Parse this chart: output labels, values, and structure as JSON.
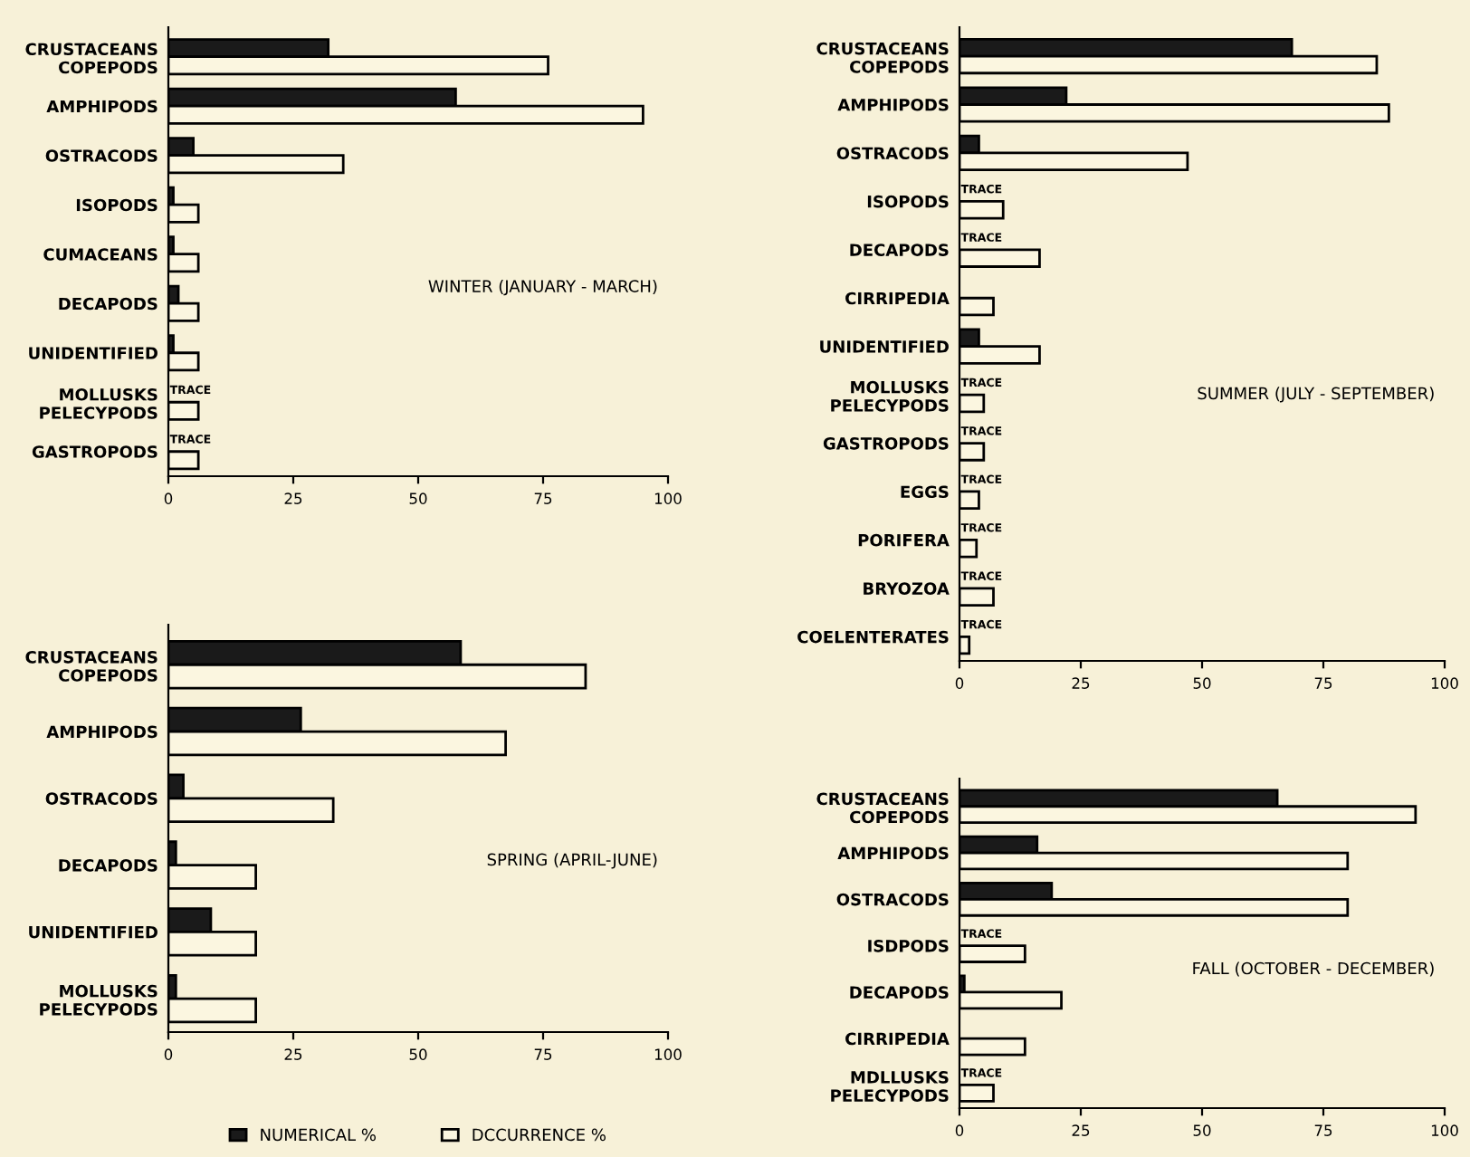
{
  "chart_data": [
    {
      "type": "bar",
      "orientation": "horizontal",
      "categories": [
        "CRUSTACEANS\nCOPEPODS",
        "AMPHIPODS",
        "OSTRACODS",
        "ISOPODS",
        "CUMACEANS",
        "DECAPODS",
        "UNIDENTIFIED",
        "MOLLUSKS\nPELECYPODS",
        "GASTROPODS"
      ],
      "series": [
        {
          "color": "#1a1a1a",
          "values": [
            32,
            57.5,
            5,
            1,
            1,
            2,
            1,
            null,
            null
          ],
          "value_labels": [
            null,
            null,
            null,
            null,
            null,
            null,
            null,
            "TRACE",
            "TRACE"
          ]
        },
        {
          "color": "#fbf6e0",
          "values": [
            76,
            95,
            35,
            6,
            6,
            6,
            6,
            6,
            6
          ]
        }
      ],
      "xlim": [
        0,
        100
      ],
      "xticks": [
        0,
        25,
        50,
        75,
        100
      ],
      "annotations": [
        "WINTER (JANUARY - MARCH)"
      ],
      "grid": false,
      "legend": false
    },
    {
      "type": "bar",
      "orientation": "horizontal",
      "categories": [
        "CRUSTACEANS\nCOPEPODS",
        "AMPHIPODS",
        "OSTRACODS",
        "ISOPODS",
        "DECAPODS",
        "CIRRIPEDIA",
        "UNIDENTIFIED",
        "MOLLUSKS\nPELECYPODS",
        "GASTROPODS",
        "EGGS",
        "PORIFERA",
        "BRYOZOA",
        "COELENTERATES"
      ],
      "series": [
        {
          "color": "#1a1a1a",
          "values": [
            68.5,
            22,
            4,
            null,
            null,
            null,
            4,
            null,
            null,
            null,
            null,
            null,
            null
          ],
          "value_labels": [
            null,
            null,
            null,
            "TRACE",
            "TRACE",
            null,
            null,
            "TRACE",
            "TRACE",
            "TRACE",
            "TRACE",
            "TRACE",
            "TRACE"
          ]
        },
        {
          "color": "#fbf6e0",
          "values": [
            86,
            88.5,
            47,
            9,
            16.5,
            7,
            16.5,
            5,
            5,
            4,
            3.5,
            7,
            2
          ]
        }
      ],
      "xlim": [
        0,
        100
      ],
      "xticks": [
        0,
        25,
        50,
        75,
        100
      ],
      "annotations": [
        "SUMMER (JULY - SEPTEMBER)"
      ],
      "grid": false,
      "legend": false
    },
    {
      "type": "bar",
      "orientation": "horizontal",
      "categories": [
        "CRUSTACEANS\nCOPEPODS",
        "AMPHIPODS",
        "OSTRACODS",
        "DECAPODS",
        "UNIDENTIFIED",
        "MOLLUSKS\nPELECYPODS"
      ],
      "series": [
        {
          "name": "NUMERICAL %",
          "color": "#1a1a1a",
          "values": [
            58.5,
            26.5,
            3,
            1.5,
            8.5,
            1.5
          ]
        },
        {
          "name": "DCCURRENCE %",
          "color": "#fbf6e0",
          "values": [
            83.5,
            67.5,
            33,
            17.5,
            17.5,
            17.5
          ]
        }
      ],
      "xlim": [
        0,
        100
      ],
      "xticks": [
        0,
        25,
        50,
        75,
        100
      ],
      "annotations": [
        "SPRING (APRIL-JUNE)"
      ],
      "grid": false,
      "legend": "bottom"
    },
    {
      "type": "bar",
      "orientation": "horizontal",
      "categories": [
        "CRUSTACEANS\nCOPEPODS",
        "AMPHIPODS",
        "OSTRACODS",
        "ISDPODS",
        "DECAPODS",
        "CIRRIPEDIA",
        "MDLLUSKS\nPELECYPODS"
      ],
      "series": [
        {
          "color": "#1a1a1a",
          "values": [
            65.5,
            16,
            19,
            null,
            1,
            null,
            null
          ],
          "value_labels": [
            null,
            null,
            null,
            "TRACE",
            null,
            null,
            "TRACE"
          ]
        },
        {
          "color": "#fbf6e0",
          "values": [
            94,
            80,
            80,
            13.5,
            21,
            13.5,
            7
          ]
        }
      ],
      "xlim": [
        0,
        100
      ],
      "xticks": [
        0,
        25,
        50,
        75,
        100
      ],
      "annotations": [
        "FALL (OCTOBER - DECEMBER)"
      ],
      "grid": false,
      "legend": false
    }
  ]
}
